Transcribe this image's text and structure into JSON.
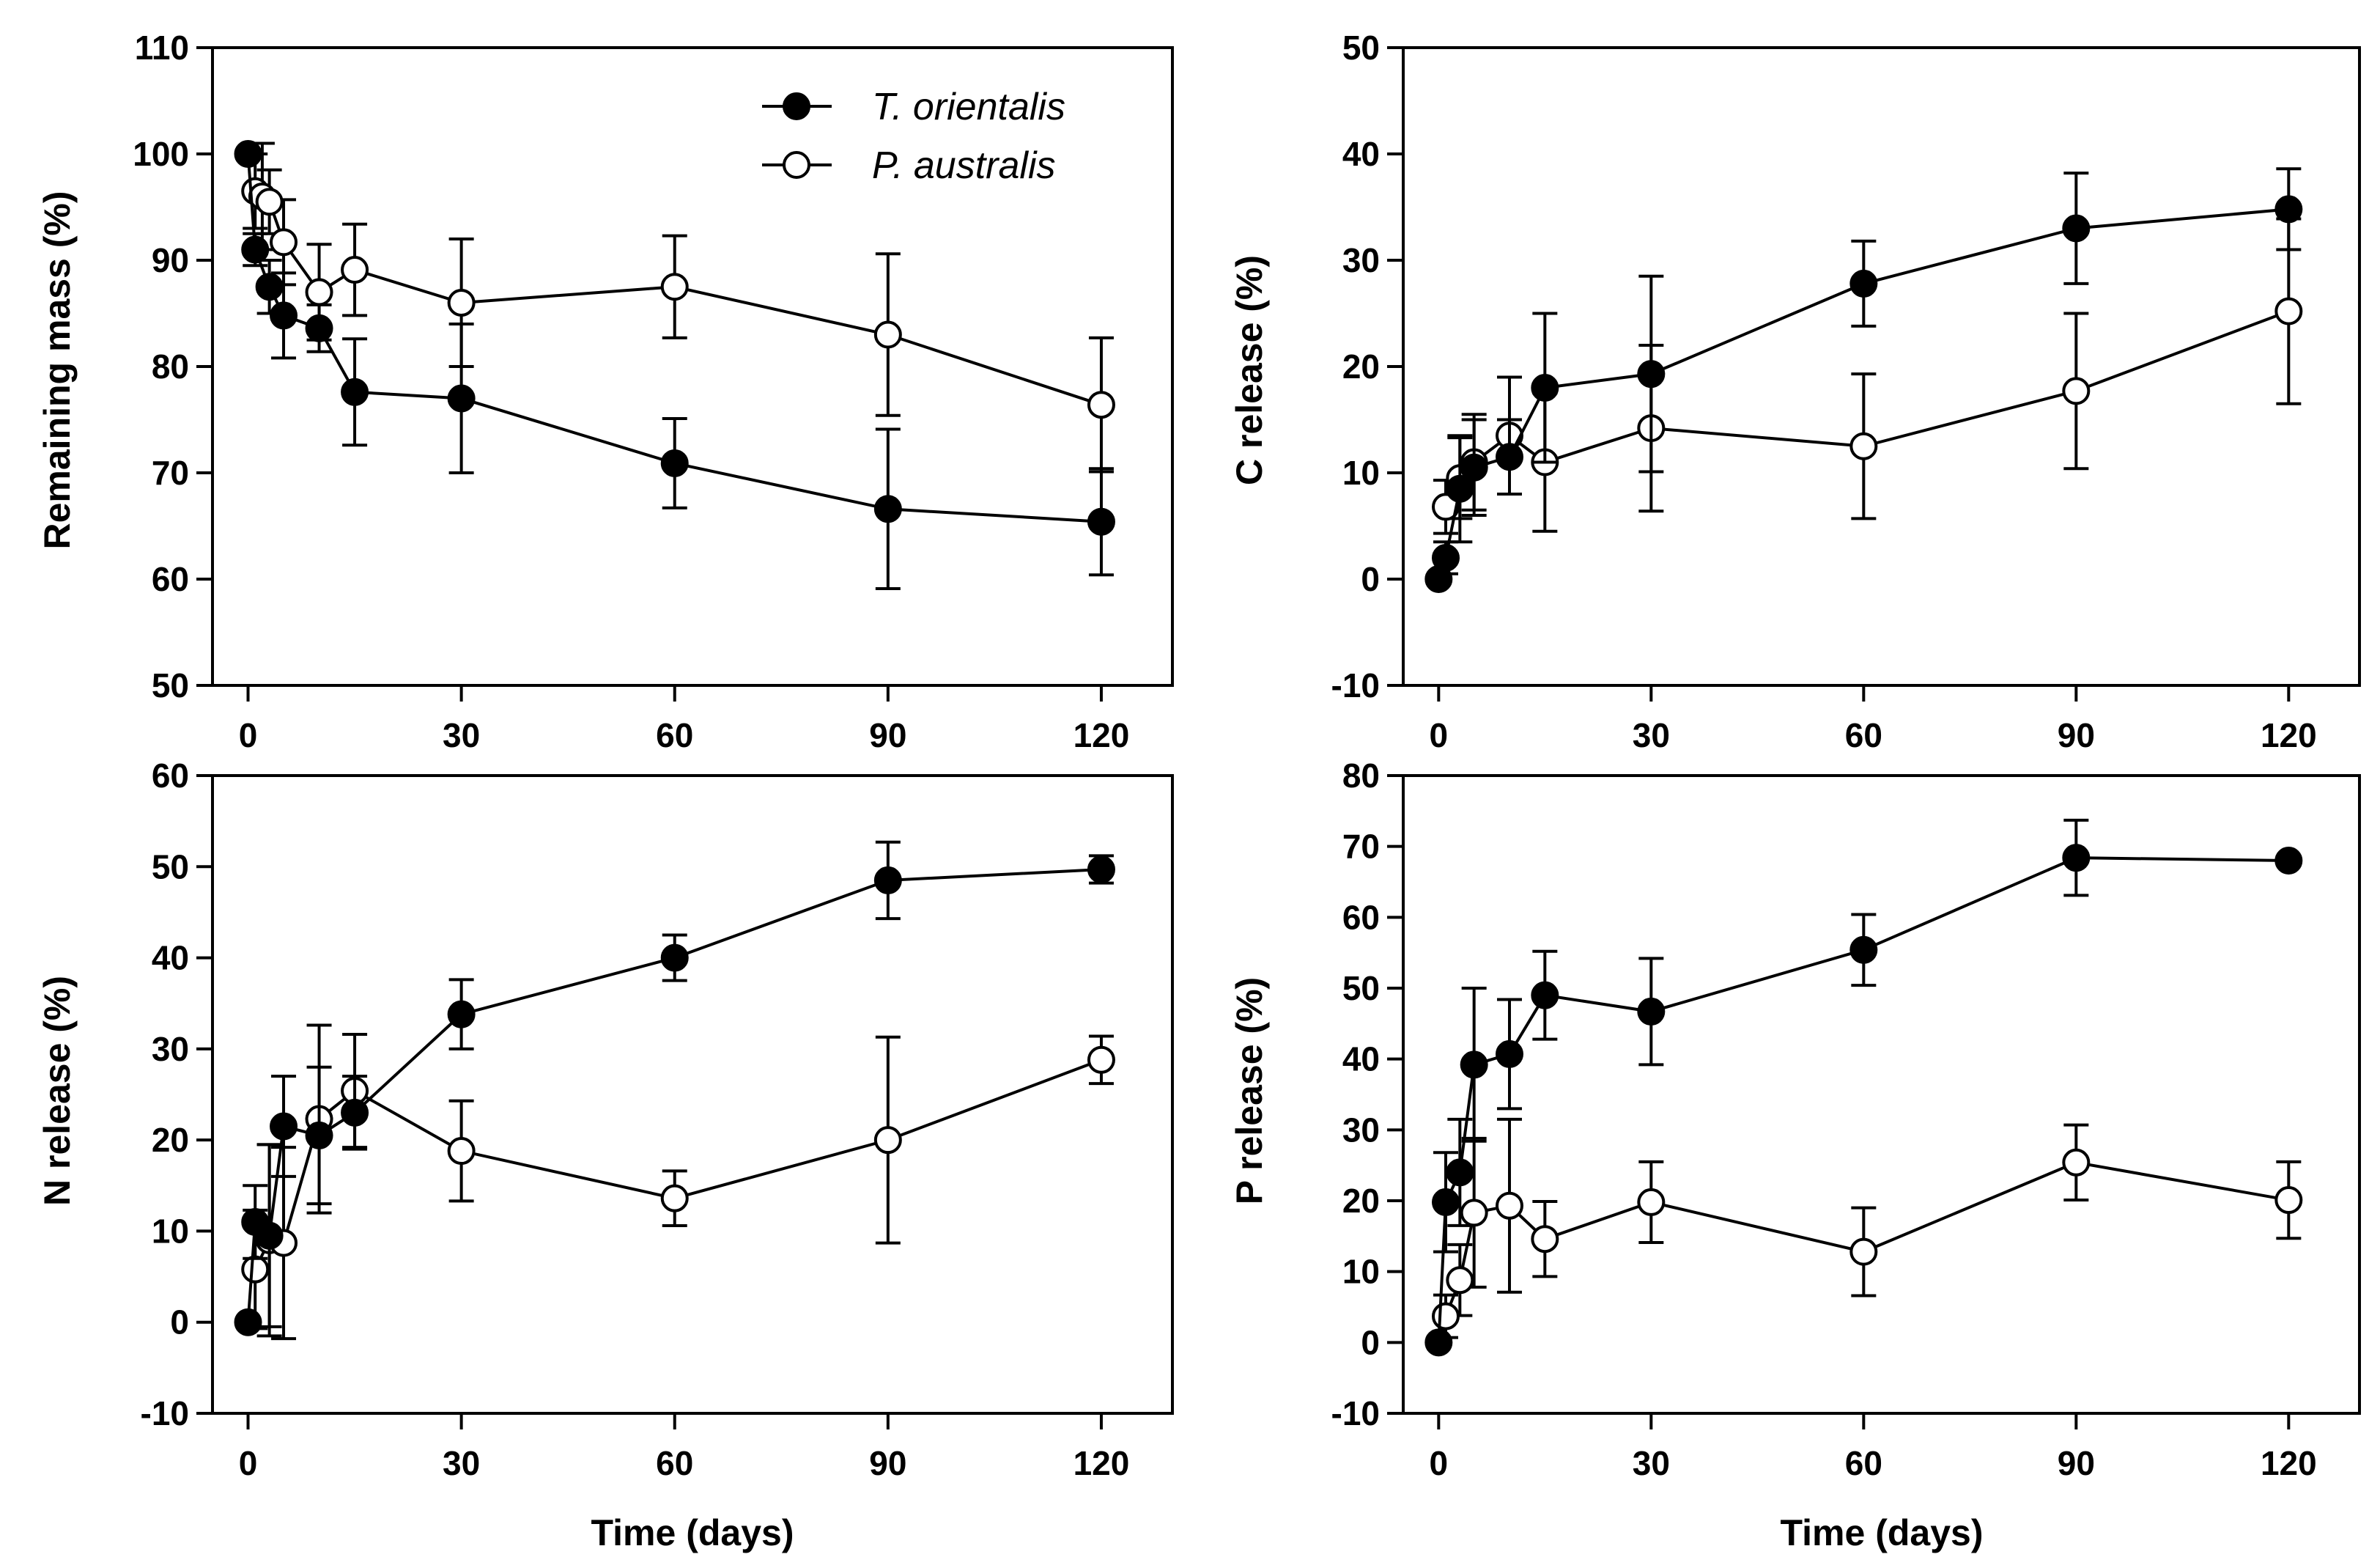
{
  "legend": {
    "series": [
      {
        "name": "T. orientalis",
        "marker": "filled-circle"
      },
      {
        "name": "P. australis",
        "marker": "open-circle"
      }
    ]
  },
  "chart_data": [
    {
      "type": "line",
      "xlabel": "",
      "ylabel": "Remaining mass (%)",
      "xlim": [
        -5,
        130
      ],
      "ylim": [
        50,
        110
      ],
      "xticks": [
        0,
        30,
        60,
        90,
        120
      ],
      "yticks": [
        50,
        60,
        70,
        80,
        90,
        100,
        110
      ],
      "legend": "top-right",
      "series": [
        {
          "name": "T. orientalis",
          "fill": "#000000",
          "x": [
            0,
            1,
            3,
            5,
            10,
            15,
            30,
            60,
            90,
            120
          ],
          "y": [
            100,
            91,
            87.5,
            84.8,
            83.6,
            77.6,
            77,
            70.9,
            66.6,
            65.4
          ],
          "err": [
            0,
            1.5,
            2.5,
            4,
            2.2,
            5,
            7,
            4.2,
            7.5,
            5
          ]
        },
        {
          "name": "P. australis",
          "fill": "#ffffff",
          "x": [
            1,
            2,
            3,
            5,
            10,
            15,
            30,
            60,
            90,
            120
          ],
          "y": [
            96.5,
            96,
            95.5,
            91.7,
            87,
            89.1,
            86,
            87.5,
            83,
            76.4
          ],
          "err": [
            3.5,
            5,
            3,
            4,
            4.5,
            4.3,
            6,
            4.8,
            7.6,
            6.3
          ]
        }
      ]
    },
    {
      "type": "line",
      "xlabel": "",
      "ylabel": "C release (%)",
      "xlim": [
        -5,
        130
      ],
      "ylim": [
        -10,
        50
      ],
      "xticks": [
        0,
        30,
        60,
        90,
        120
      ],
      "yticks": [
        -10,
        0,
        10,
        20,
        30,
        40,
        50
      ],
      "series": [
        {
          "name": "T. orientalis",
          "fill": "#000000",
          "x": [
            0,
            1,
            3,
            5,
            10,
            15,
            30,
            60,
            90,
            120
          ],
          "y": [
            0,
            2,
            8.5,
            10.5,
            11.5,
            18,
            19.3,
            27.8,
            33,
            34.8
          ],
          "err": [
            0,
            1.5,
            5,
            4.5,
            3.5,
            7,
            9.2,
            4,
            5.2,
            3.8
          ]
        },
        {
          "name": "P. australis",
          "fill": "#ffffff",
          "x": [
            1,
            3,
            5,
            10,
            15,
            30,
            60,
            90,
            120
          ],
          "y": [
            6.8,
            9.5,
            11,
            13.5,
            11,
            14.2,
            12.5,
            17.7,
            25.2
          ],
          "err": [
            2.5,
            3.8,
            4.5,
            5.5,
            6.5,
            7.8,
            6.8,
            7.3,
            8.7
          ]
        }
      ]
    },
    {
      "type": "line",
      "xlabel": "Time (days)",
      "ylabel": "N release (%)",
      "xlim": [
        -5,
        130
      ],
      "ylim": [
        -10,
        60
      ],
      "xticks": [
        0,
        30,
        60,
        90,
        120
      ],
      "yticks": [
        -10,
        0,
        10,
        20,
        30,
        40,
        50,
        60
      ],
      "series": [
        {
          "name": "T. orientalis",
          "fill": "#000000",
          "x": [
            0,
            1,
            3,
            5,
            10,
            15,
            30,
            60,
            90,
            120
          ],
          "y": [
            0,
            11,
            9.5,
            21.5,
            20.5,
            23,
            33.8,
            40,
            48.5,
            49.7
          ],
          "err": [
            0,
            4,
            10,
            5.5,
            7.5,
            4,
            3.8,
            2.5,
            4.2,
            1.5
          ]
        },
        {
          "name": "P. australis",
          "fill": "#ffffff",
          "x": [
            1,
            3,
            5,
            10,
            15,
            30,
            60,
            90,
            120
          ],
          "y": [
            5.8,
            9,
            8.7,
            22.3,
            25.4,
            18.8,
            13.6,
            20,
            28.8
          ],
          "err": [
            6.5,
            10.5,
            10.5,
            10.3,
            6.2,
            5.5,
            3,
            11.3,
            2.6
          ]
        }
      ]
    },
    {
      "type": "line",
      "xlabel": "Time (days)",
      "ylabel": "P release (%)",
      "xlim": [
        -5,
        130
      ],
      "ylim": [
        -10,
        80
      ],
      "xticks": [
        0,
        30,
        60,
        90,
        120
      ],
      "yticks": [
        -10,
        0,
        10,
        20,
        30,
        40,
        50,
        60,
        70,
        80
      ],
      "series": [
        {
          "name": "T. orientalis",
          "fill": "#000000",
          "x": [
            0,
            1,
            3,
            5,
            10,
            15,
            30,
            60,
            90,
            120
          ],
          "y": [
            0,
            19.8,
            24,
            39.2,
            40.7,
            49,
            46.7,
            55.4,
            68.4,
            68
          ],
          "err": [
            0,
            7,
            7.5,
            10.8,
            7.7,
            6.2,
            7.5,
            5,
            5.3,
            0
          ]
        },
        {
          "name": "P. australis",
          "fill": "#ffffff",
          "x": [
            1,
            3,
            5,
            10,
            15,
            30,
            60,
            90,
            120
          ],
          "y": [
            3.7,
            8.8,
            18.3,
            19.3,
            14.6,
            19.8,
            12.8,
            25.4,
            20.1
          ],
          "err": [
            3,
            5,
            10.5,
            12.2,
            5.3,
            5.7,
            6.2,
            5.3,
            5.4
          ]
        }
      ]
    }
  ]
}
